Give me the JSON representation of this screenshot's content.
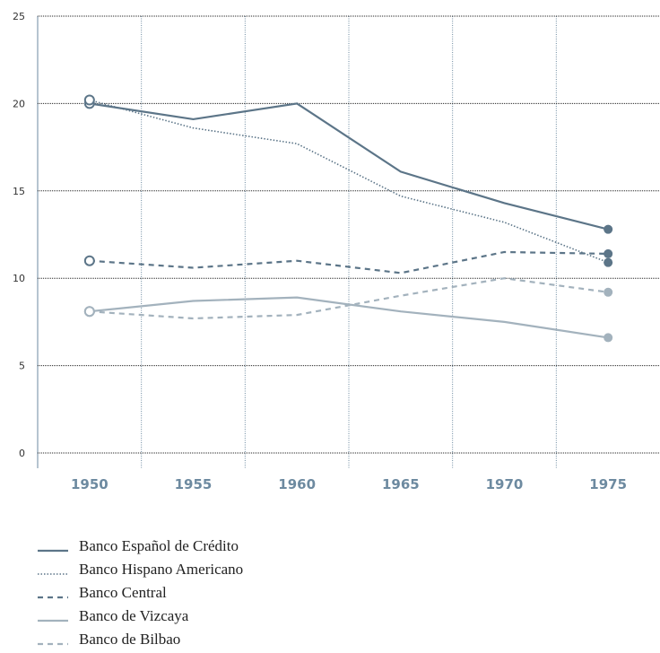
{
  "chart_data": {
    "type": "line",
    "categories": [
      "1950",
      "1955",
      "1960",
      "1965",
      "1970",
      "1975"
    ],
    "series": [
      {
        "name": "Banco Español de Crédito",
        "color": "#5c7588",
        "style": "solid",
        "values": [
          20.0,
          19.1,
          20.0,
          16.1,
          14.3,
          12.8
        ]
      },
      {
        "name": "Banco Hispano Americano",
        "color": "#5c7588",
        "style": "dotted",
        "values": [
          20.2,
          18.6,
          17.7,
          14.7,
          13.2,
          10.9
        ]
      },
      {
        "name": "Banco Central",
        "color": "#5c7588",
        "style": "dashed",
        "values": [
          11.0,
          10.6,
          11.0,
          10.3,
          11.5,
          11.4
        ]
      },
      {
        "name": "Banco de Vizcaya",
        "color": "#a3b2bd",
        "style": "solid",
        "values": [
          8.1,
          8.7,
          8.9,
          8.1,
          7.5,
          6.6
        ]
      },
      {
        "name": "Banco de Bilbao",
        "color": "#a3b2bd",
        "style": "dashed",
        "values": [
          8.1,
          7.7,
          7.9,
          9.0,
          10.0,
          9.2
        ]
      }
    ],
    "ylim": [
      0,
      25
    ],
    "yticks": [
      0,
      5,
      10,
      15,
      20,
      25
    ],
    "grid": true,
    "legend": "bottom-left"
  }
}
